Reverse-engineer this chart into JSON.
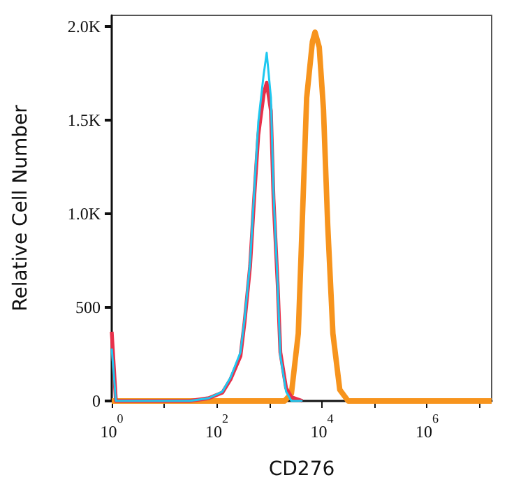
{
  "chart_data": {
    "type": "line",
    "xlabel": "CD276",
    "ylabel": "Relative Cell Number",
    "log": "x",
    "marker": "none",
    "line_style": "solid",
    "grid": false,
    "xlim": [
      1,
      17000000
    ],
    "xticks": [
      {
        "value": 1,
        "label": "10$^{0}$"
      },
      {
        "value": 10,
        "label": null
      },
      {
        "value": 100,
        "label": "10$^{2}$"
      },
      {
        "value": 1000,
        "label": null
      },
      {
        "value": 10000,
        "label": "10$^{4}$"
      },
      {
        "value": 100000,
        "label": null
      },
      {
        "value": 1000000,
        "label": "10$^{6}$"
      },
      {
        "value": 10000000,
        "label": null
      }
    ],
    "ylim": [
      0,
      2060
    ],
    "yticks": [
      0,
      500,
      {
        "value": 1000,
        "label": "1.0K"
      },
      {
        "value": 1500,
        "label": "1.5K"
      },
      {
        "value": 2000,
        "label": "2.0K"
      }
    ],
    "series": [
      {
        "color": "#f7941d",
        "x": [
          1,
          1950,
          2630,
          3550,
          4270,
          5130,
          6600,
          7400,
          8900,
          10700,
          12900,
          16200,
          21900,
          31600,
          17000000
        ],
        "values": [
          0,
          0,
          40,
          360,
          990,
          1620,
          1920,
          1970,
          1890,
          1560,
          940,
          360,
          60,
          0,
          0
        ]
      },
      {
        "color": "#e8304a",
        "x": [
          1,
          1.2,
          30,
          70,
          128,
          182,
          282,
          337,
          430,
          513,
          616,
          780,
          890,
          1070,
          1200,
          1440,
          1620,
          2080,
          2630,
          4270
        ],
        "values": [
          370,
          0,
          0,
          15,
          45,
          115,
          240,
          420,
          720,
          1080,
          1420,
          1640,
          1700,
          1550,
          1080,
          620,
          260,
          70,
          20,
          0
        ]
      },
      {
        "color": "#1ec8f0",
        "x": [
          1,
          1.2,
          30,
          70,
          128,
          182,
          282,
          337,
          430,
          513,
          616,
          780,
          890,
          1070,
          1200,
          1440,
          1620,
          2080,
          2630,
          4270
        ],
        "values": [
          280,
          0,
          0,
          15,
          50,
          125,
          260,
          435,
          740,
          1110,
          1490,
          1745,
          1860,
          1620,
          1110,
          615,
          240,
          50,
          0,
          0
        ]
      }
    ]
  }
}
